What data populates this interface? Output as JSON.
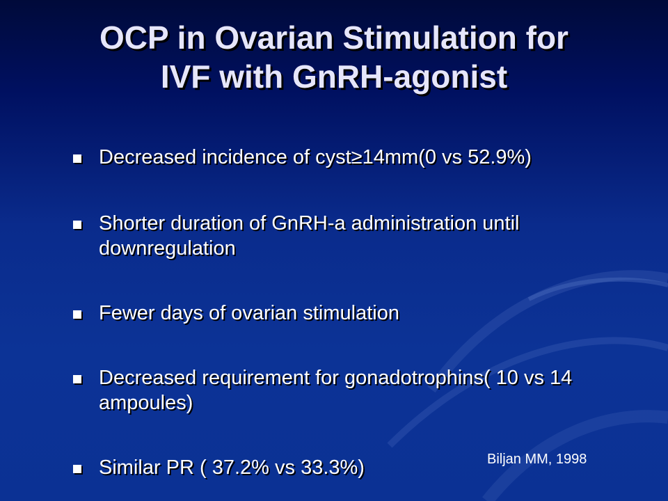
{
  "slide": {
    "title_lines": [
      "OCP in Ovarian Stimulation for",
      "IVF with GnRH-agonist"
    ],
    "bullets": [
      {
        "text": "Decreased incidence of cyst≥14mm(0 vs 52.9%)"
      },
      {
        "text": "Shorter duration of GnRH-a administration until downregulation"
      },
      {
        "text": "Fewer days of ovarian stimulation"
      },
      {
        "text": "Decreased  requirement for gonadotrophins( 10 vs 14 ampoules)"
      },
      {
        "text": "Similar PR ( 37.2% vs 33.3%)"
      }
    ],
    "citation": "Biljan MM, 1998"
  },
  "colors": {
    "background_top": "#000a3a",
    "background_bottom": "#0b3194",
    "title": "#e6e6fa",
    "body_text": "#ffffff"
  }
}
